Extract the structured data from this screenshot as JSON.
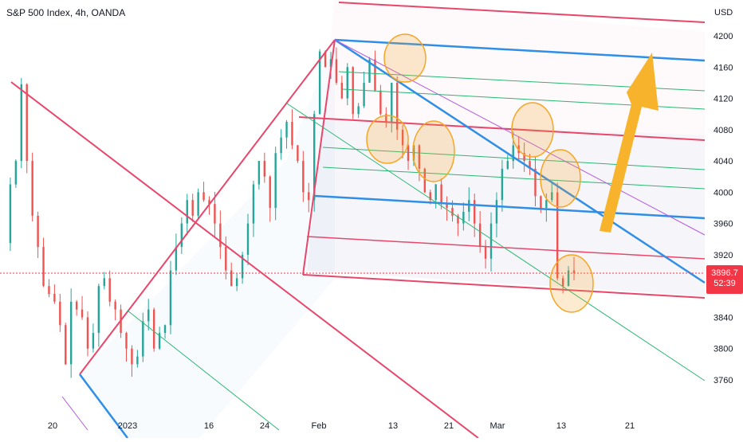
{
  "header": {
    "title": "S&P 500 Index, 4h, OANDA",
    "unit": "USD"
  },
  "last_price": {
    "value": "3896.7",
    "countdown": "52:39"
  },
  "colors": {
    "candle_up": "#26a69a",
    "candle_down": "#ef5350",
    "pitchfork_pink": "#e8476b",
    "pitchfork_blue": "#2f8ee6",
    "green_line": "#2bb673",
    "purple_line": "#b35be0",
    "highlight_circle": "#f5a623",
    "arrow": "#f7b32b"
  },
  "chart_data": {
    "type": "candlestick",
    "title": "S&P 500 Index, 4h, OANDA",
    "ylabel": "USD",
    "ylim": [
      3740,
      4220
    ],
    "y_ticks": [
      3760,
      3800,
      3840,
      3880,
      3920,
      3960,
      4000,
      4040,
      4080,
      4120,
      4160,
      4200
    ],
    "x_ticks": [
      "20",
      "2023",
      "16",
      "24",
      "Feb",
      "13",
      "21",
      "Mar",
      "13",
      "21"
    ],
    "grid": false,
    "last_price": 3896.7,
    "price_path": [
      [
        3935,
        4010,
        4040,
        4138,
        4040,
        3970,
        3930,
        3880,
        3870,
        3860,
        3830,
        3780,
        3860,
        3850,
        3840,
        3800,
        3820,
        3880,
        3890,
        3860,
        3850
      ],
      [
        3820,
        3800,
        3780,
        3790,
        3835,
        3850,
        3800,
        3820,
        3830,
        3900,
        3930,
        3960,
        3990,
        3970,
        4000,
        3990,
        3985,
        3960,
        3930,
        3900
      ],
      [
        3880,
        3890,
        3920,
        3960,
        4010,
        4040,
        4020,
        3980,
        4050,
        4070,
        4090,
        4060,
        4040,
        4000,
        3990,
        4100,
        4180,
        4160,
        4170,
        4140
      ],
      [
        4120,
        4160,
        4100,
        4110,
        4140,
        4170,
        4130,
        4100,
        4090,
        4140,
        4080,
        4060,
        4040,
        4060,
        4030,
        4000,
        3990,
        4010,
        3985,
        3980,
        3970
      ],
      [
        3960,
        3975,
        3990,
        3960,
        3930,
        3915,
        3960,
        3990,
        4030,
        4040,
        4060,
        4050,
        4040,
        4030,
        3995,
        3980,
        3990,
        4000,
        3890,
        3880,
        3900,
        3896.7
      ]
    ]
  }
}
